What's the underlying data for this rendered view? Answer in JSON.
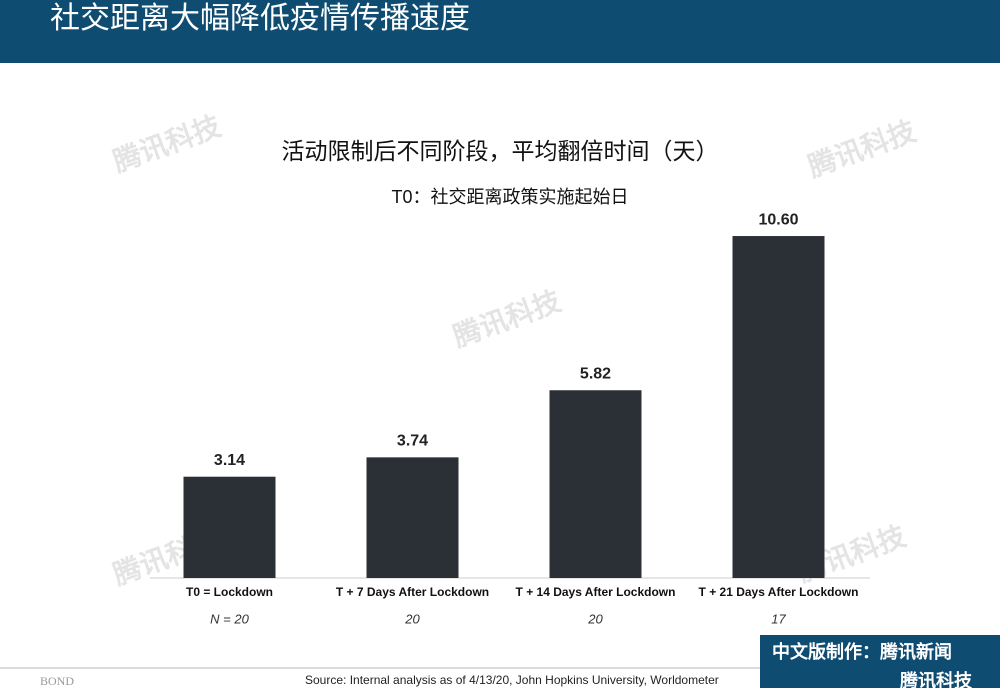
{
  "header": {
    "title": "社交距离大幅降低疫情传播速度"
  },
  "chart_data": {
    "type": "bar",
    "title": "活动限制后不同阶段，平均翻倍时间（天）",
    "subtitle": "T0：社交距离政策实施起始日",
    "categories": [
      "T0 = Lockdown",
      "T + 7 Days After Lockdown",
      "T + 14 Days After Lockdown",
      "T + 21 Days After Lockdown"
    ],
    "category_notes": [
      "N = 20",
      "20",
      "20",
      "17"
    ],
    "values": [
      3.14,
      3.74,
      5.82,
      10.6
    ],
    "value_labels": [
      "3.14",
      "3.74",
      "5.82",
      "10.60"
    ],
    "color": "#2b2f36"
  },
  "footer": {
    "source": "Source: Internal analysis as of 4/13/20, John Hopkins University, Worldometer",
    "credit": "中文版制作：腾讯新闻",
    "credit2": "腾讯科技",
    "brand": "BOND"
  },
  "watermark": "腾讯科技"
}
